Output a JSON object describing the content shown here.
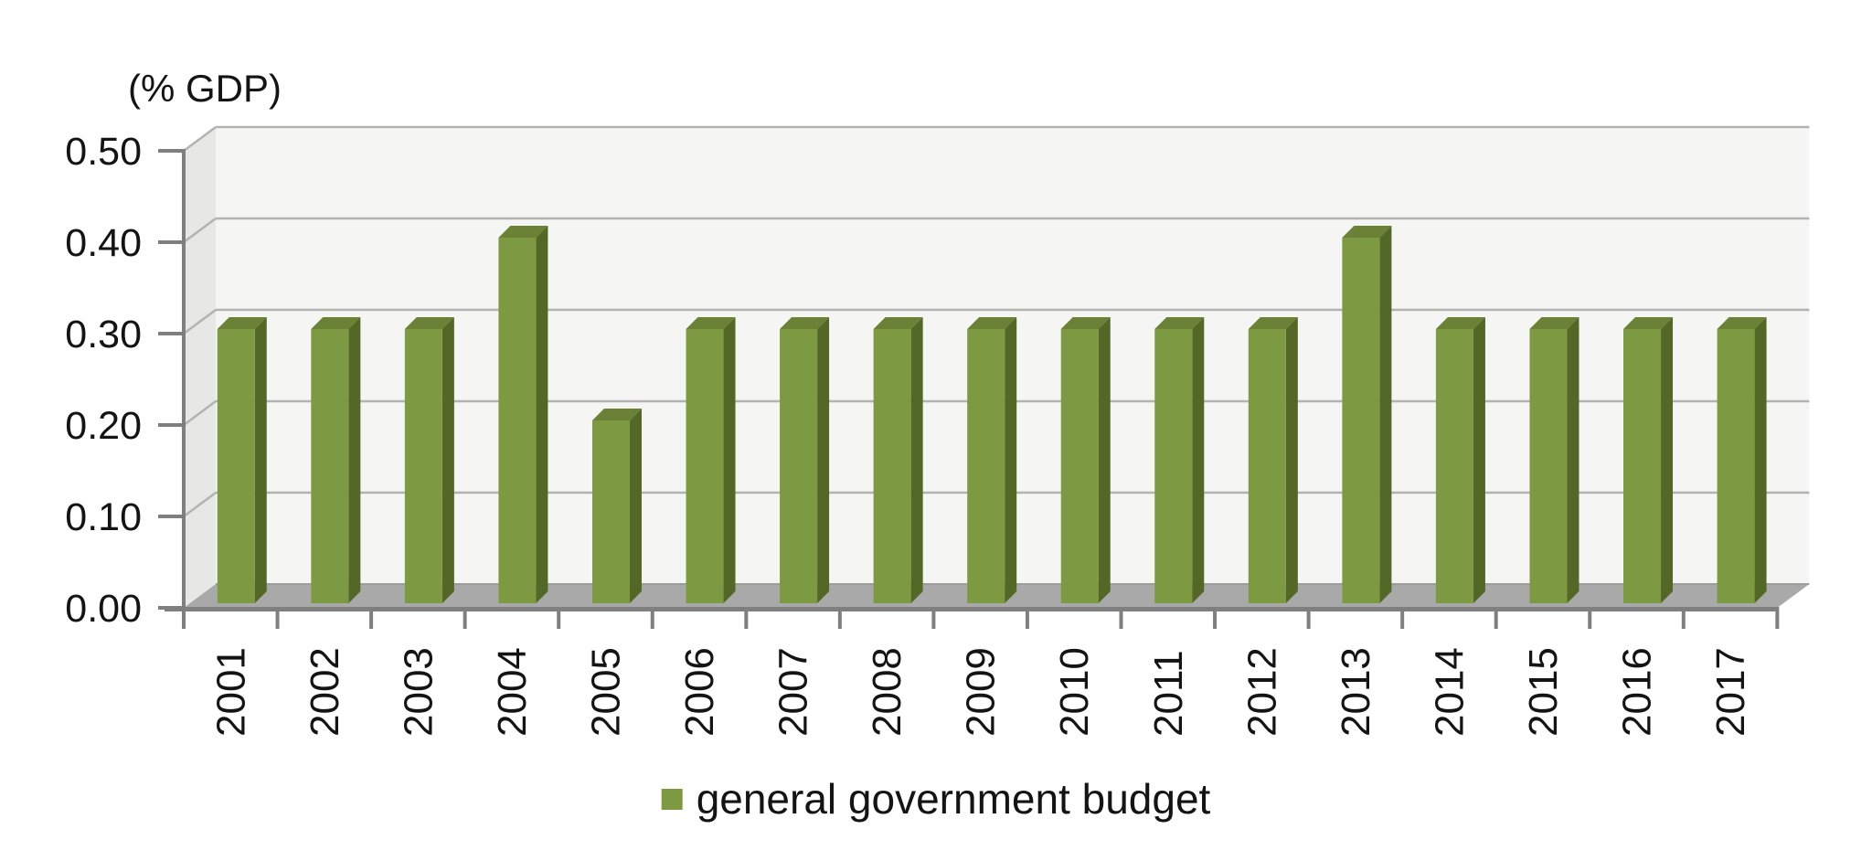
{
  "chart_data": {
    "type": "bar",
    "style": "3d-bar",
    "title": "(% GDP)",
    "categories": [
      "2001",
      "2002",
      "2003",
      "2004",
      "2005",
      "2006",
      "2007",
      "2008",
      "2009",
      "2010",
      "2011",
      "2012",
      "2013",
      "2014",
      "2015",
      "2016",
      "2017"
    ],
    "series": [
      {
        "name": "general government budget",
        "values": [
          0.3,
          0.3,
          0.3,
          0.4,
          0.2,
          0.3,
          0.3,
          0.3,
          0.3,
          0.3,
          0.3,
          0.3,
          0.4,
          0.3,
          0.3,
          0.3,
          0.3
        ]
      }
    ],
    "xlabel": "",
    "ylabel": "(% GDP)",
    "ylim": [
      0,
      0.5
    ],
    "yticks": [
      0,
      0.1,
      0.2,
      0.3,
      0.4,
      0.5
    ],
    "ytick_labels": [
      "0.00",
      "0.10",
      "0.20",
      "0.30",
      "0.40",
      "0.50"
    ],
    "grid": true,
    "legend_position": "bottom-center",
    "colors": {
      "bar_front": "#7d9a42",
      "bar_top": "#6b8136",
      "bar_side": "#536827",
      "wall_side": "#e7e7e5",
      "wall_back": "#f5f5f3",
      "floor": "#a9a9a9",
      "floor_edge": "#9c9c9a",
      "gridline": "#b3b3b1",
      "axis": "#7f7f7f",
      "text": "#141414"
    }
  },
  "legend": {
    "label": "general government budget"
  }
}
